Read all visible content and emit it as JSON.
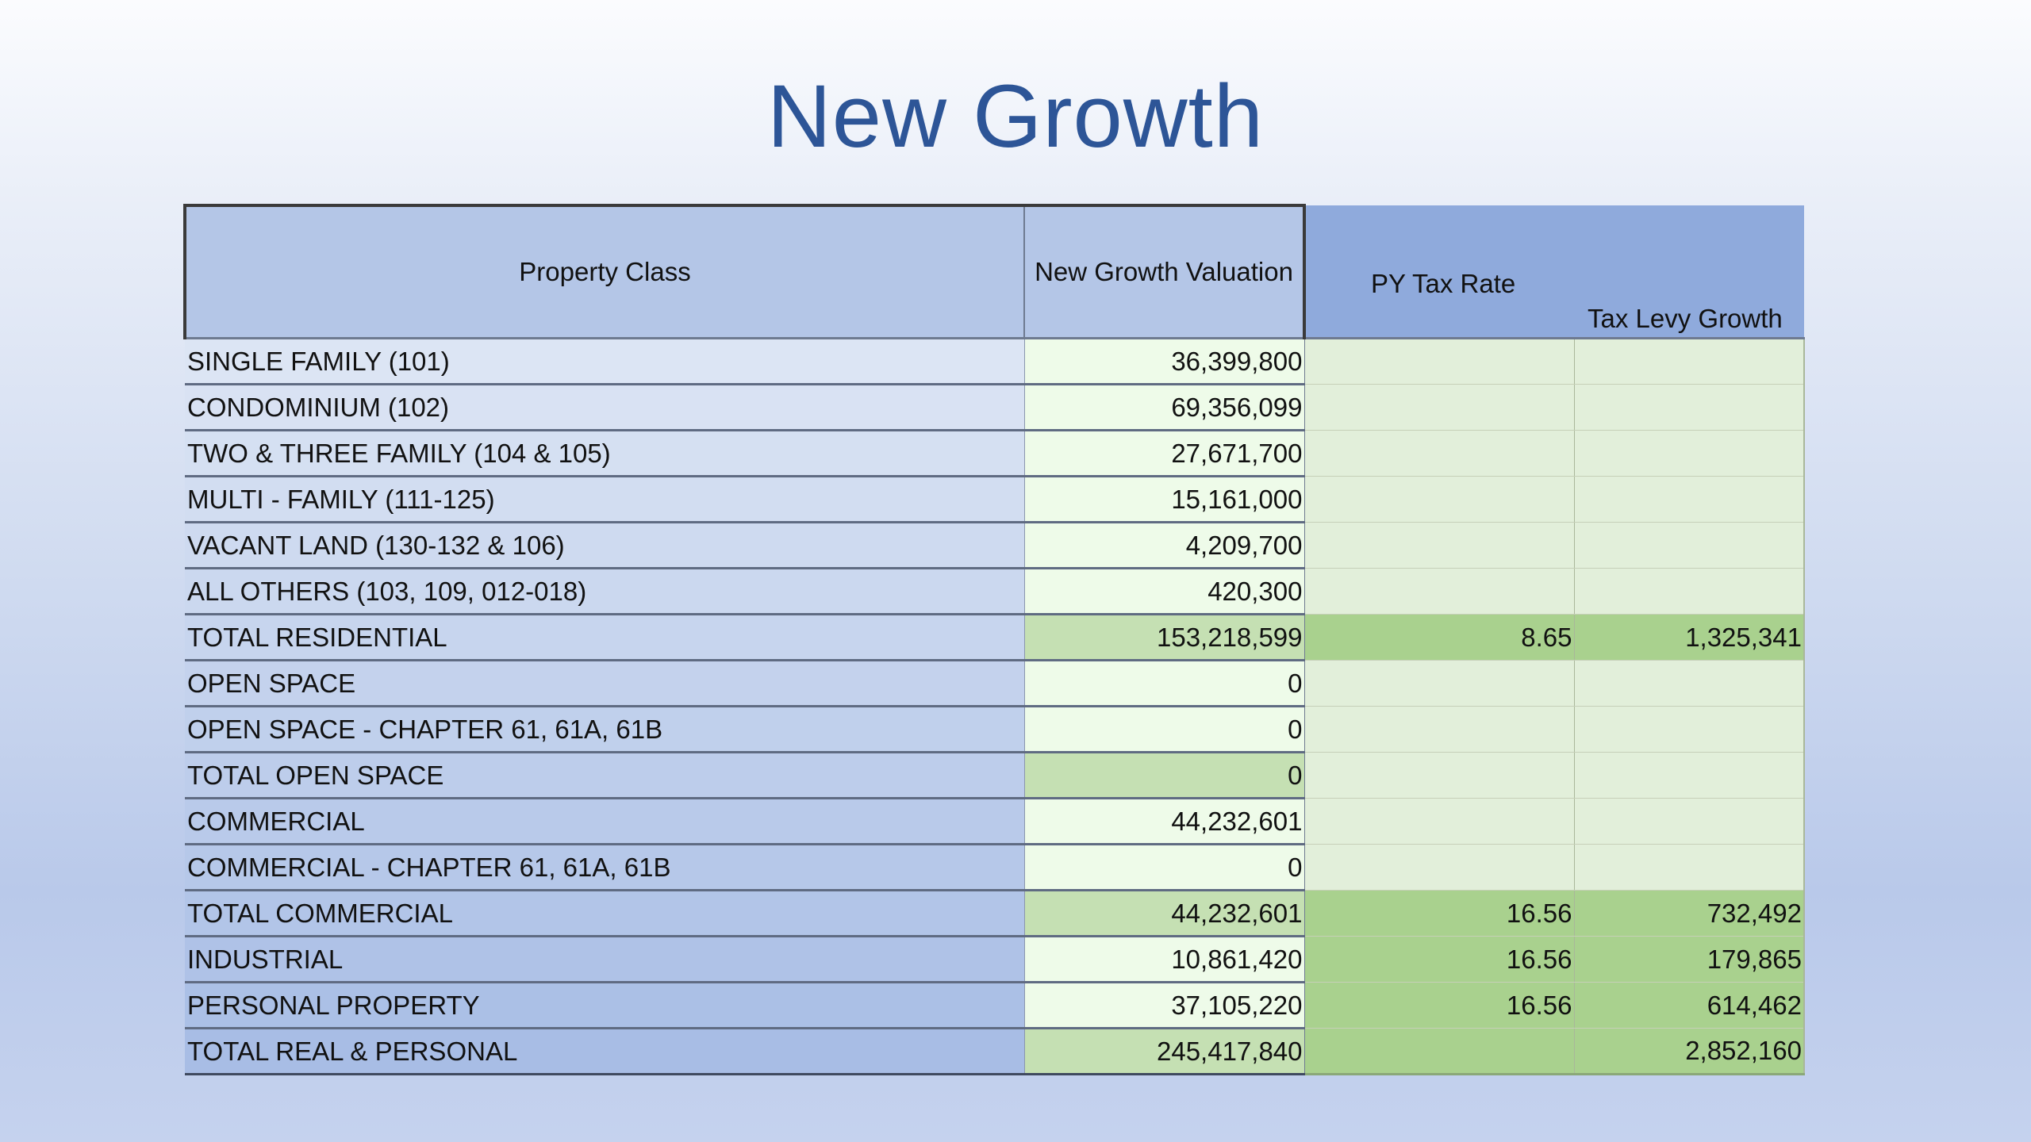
{
  "title": "New Growth",
  "table": {
    "headers": {
      "property_class": "Property Class",
      "valuation": "New Growth Valuation",
      "py_tax_rate": "PY Tax Rate",
      "tax_levy_growth": "Tax Levy Growth"
    },
    "rows": [
      {
        "property_class": "SINGLE FAMILY (101)",
        "valuation": "36,399,800",
        "py_tax_rate": "",
        "tax_levy_growth": "",
        "style": "plain"
      },
      {
        "property_class": "CONDOMINIUM (102)",
        "valuation": "69,356,099",
        "py_tax_rate": "",
        "tax_levy_growth": "",
        "style": "plain"
      },
      {
        "property_class": "TWO & THREE FAMILY (104 & 105)",
        "valuation": "27,671,700",
        "py_tax_rate": "",
        "tax_levy_growth": "",
        "style": "plain"
      },
      {
        "property_class": "MULTI - FAMILY (111-125)",
        "valuation": "15,161,000",
        "py_tax_rate": "",
        "tax_levy_growth": "",
        "style": "plain"
      },
      {
        "property_class": "VACANT LAND (130-132 & 106)",
        "valuation": "4,209,700",
        "py_tax_rate": "",
        "tax_levy_growth": "",
        "style": "plain"
      },
      {
        "property_class": "ALL OTHERS (103, 109, 012-018)",
        "valuation": "420,300",
        "py_tax_rate": "",
        "tax_levy_growth": "",
        "style": "plain"
      },
      {
        "property_class": "TOTAL RESIDENTIAL",
        "valuation": "153,218,599",
        "py_tax_rate": "8.65",
        "tax_levy_growth": "1,325,341",
        "style": "total"
      },
      {
        "property_class": "OPEN SPACE",
        "valuation": "0",
        "py_tax_rate": "",
        "tax_levy_growth": "",
        "style": "plain"
      },
      {
        "property_class": "OPEN SPACE - CHAPTER 61, 61A, 61B",
        "valuation": "0",
        "py_tax_rate": "",
        "tax_levy_growth": "",
        "style": "plain"
      },
      {
        "property_class": "TOTAL OPEN SPACE",
        "valuation": "0",
        "py_tax_rate": "",
        "tax_levy_growth": "",
        "style": "subtotal"
      },
      {
        "property_class": "COMMERCIAL",
        "valuation": "44,232,601",
        "py_tax_rate": "",
        "tax_levy_growth": "",
        "style": "plain"
      },
      {
        "property_class": "COMMERCIAL - CHAPTER 61, 61A, 61B",
        "valuation": "0",
        "py_tax_rate": "",
        "tax_levy_growth": "",
        "style": "plain"
      },
      {
        "property_class": "TOTAL COMMERCIAL",
        "valuation": "44,232,601",
        "py_tax_rate": "16.56",
        "tax_levy_growth": "732,492",
        "style": "total"
      },
      {
        "property_class": "INDUSTRIAL",
        "valuation": "10,861,420",
        "py_tax_rate": "16.56",
        "tax_levy_growth": "179,865",
        "style": "rated"
      },
      {
        "property_class": "PERSONAL PROPERTY",
        "valuation": "37,105,220",
        "py_tax_rate": "16.56",
        "tax_levy_growth": "614,462",
        "style": "rated"
      },
      {
        "property_class": "TOTAL REAL & PERSONAL",
        "valuation": "245,417,840",
        "py_tax_rate": "",
        "tax_levy_growth": "2,852,160",
        "style": "total"
      }
    ]
  },
  "colors": {
    "title": "#2d5597",
    "header_light": "#b4c6e7",
    "header_dark": "#8faadc",
    "class_col_top": "#dce5f4",
    "class_col_bottom": "#a8bde5",
    "value_plain": "#eefbe9",
    "value_total": "#c5e0b3",
    "right_plain": "#e2efda",
    "right_rated": "#a9d18e"
  }
}
